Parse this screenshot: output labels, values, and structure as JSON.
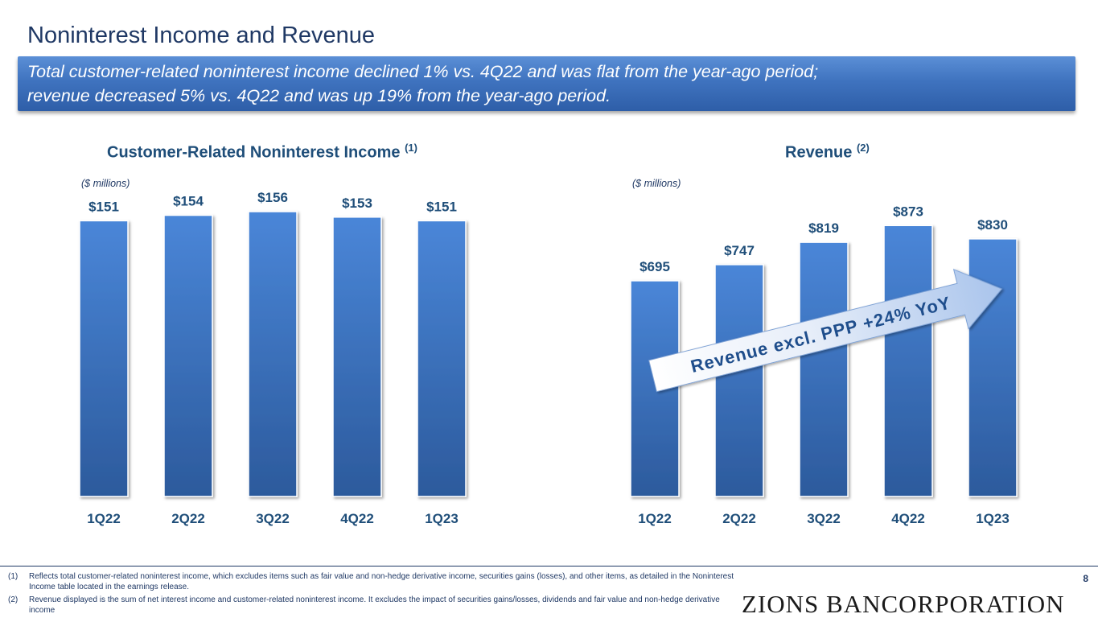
{
  "header": {
    "title": "Noninterest Income and Revenue",
    "banner_line1": "Total customer-related noninterest income declined 1% vs. 4Q22 and was flat from the year-ago period;",
    "banner_line2": "revenue decreased 5% vs. 4Q22 and was up 19% from the year-ago period."
  },
  "chart_data": [
    {
      "type": "bar",
      "title": "Customer-Related Noninterest Income",
      "title_sup": "(1)",
      "units": "($ millions)",
      "categories": [
        "1Q22",
        "2Q22",
        "3Q22",
        "4Q22",
        "1Q23"
      ],
      "values": [
        151,
        154,
        156,
        153,
        151
      ],
      "labels": [
        "$151",
        "$154",
        "$156",
        "$153",
        "$151"
      ],
      "ylim": [
        0,
        156
      ],
      "grid": false,
      "color": "#3b73c5"
    },
    {
      "type": "bar",
      "title": "Revenue",
      "title_sup": "(2)",
      "units": "($ millions)",
      "categories": [
        "1Q22",
        "2Q22",
        "3Q22",
        "4Q22",
        "1Q23"
      ],
      "values": [
        695,
        747,
        819,
        873,
        830
      ],
      "labels": [
        "$695",
        "$747",
        "$819",
        "$873",
        "$830"
      ],
      "ylim": [
        0,
        1050
      ],
      "grid": false,
      "color": "#3b73c5",
      "annotation": "Revenue excl. PPP +24% YoY"
    }
  ],
  "footnotes": [
    {
      "num": "(1)",
      "text": "Reflects total customer-related noninterest income, which excludes items such as fair value and non-hedge derivative income, securities gains (losses), and other items, as detailed in the Noninterest Income table located in the earnings release."
    },
    {
      "num": "(2)",
      "text": "Revenue displayed is the sum of net interest income and customer-related noninterest income. It excludes the impact of securities gains/losses, dividends and fair value and non-hedge derivative income"
    }
  ],
  "page_number": "8",
  "logo_text": "ZIONS BANCORPORATION",
  "colors": {
    "title": "#1f3864",
    "bar_top": "#4a86d8",
    "bar_bottom": "#2c5a9c",
    "label": "#1f4e79"
  }
}
